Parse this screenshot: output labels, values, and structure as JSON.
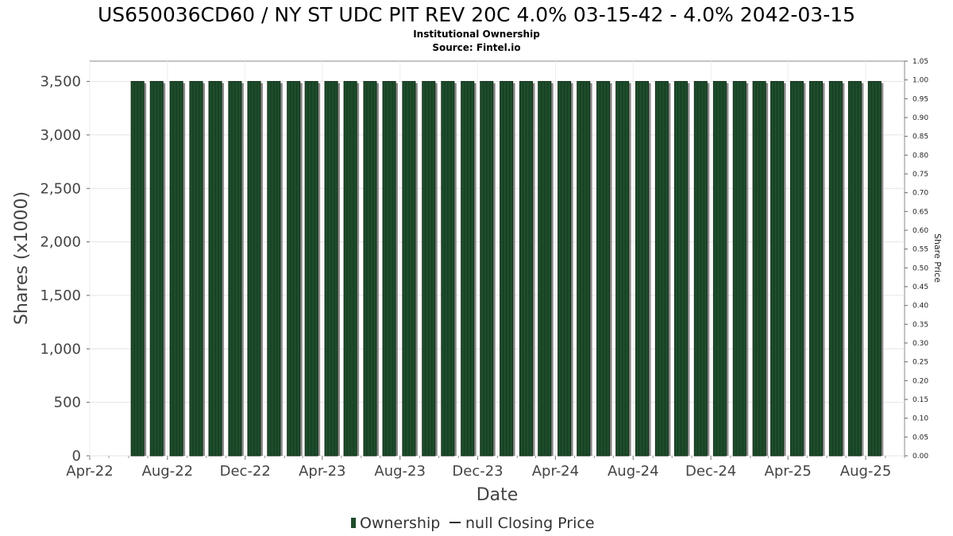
{
  "chart_data": {
    "type": "bar",
    "title": "US650036CD60 / NY ST UDC PIT REV 20C 4.0% 03-15-42 - 4.0% 2042-03-15",
    "subtitle_lines": [
      "Institutional Ownership",
      "Source: Fintel.io"
    ],
    "xlabel": "Date",
    "ylabel": "Shares (x1000)",
    "ylabel_right": "Share Price",
    "x_tick_labels": [
      "Apr-22",
      "Aug-22",
      "Dec-22",
      "Apr-23",
      "Aug-23",
      "Dec-23",
      "Apr-24",
      "Aug-24",
      "Dec-24",
      "Apr-25",
      "Aug-25"
    ],
    "y_tick_labels": [
      "0",
      "500",
      "1,000",
      "1,500",
      "2,000",
      "2,500",
      "3,000",
      "3,500"
    ],
    "y_ticks": [
      0,
      500,
      1000,
      1500,
      2000,
      2500,
      3000,
      3500
    ],
    "ylim": [
      0,
      3690
    ],
    "y_right_tick_labels": [
      "0.00",
      "0.05",
      "0.10",
      "0.15",
      "0.20",
      "0.25",
      "0.30",
      "0.35",
      "0.40",
      "0.45",
      "0.50",
      "0.55",
      "0.60",
      "0.65",
      "0.70",
      "0.75",
      "0.80",
      "0.85",
      "0.90",
      "0.95",
      "1.00",
      "1.05"
    ],
    "y_right_ticks": [
      0,
      0.05,
      0.1,
      0.15,
      0.2,
      0.25,
      0.3,
      0.35,
      0.4,
      0.45,
      0.5,
      0.55,
      0.6,
      0.65,
      0.7,
      0.75,
      0.8,
      0.85,
      0.9,
      0.95,
      1.0,
      1.05
    ],
    "ylim_right": [
      0,
      1.05
    ],
    "x_start": "2022-04-01",
    "x_end": "2025-10-01",
    "series": [
      {
        "name": "Ownership",
        "color": "#1e4d2b",
        "dates": [
          "2022-06-15",
          "2022-07-15",
          "2022-08-15",
          "2022-09-15",
          "2022-10-15",
          "2022-11-15",
          "2022-12-15",
          "2023-01-15",
          "2023-02-15",
          "2023-03-15",
          "2023-04-15",
          "2023-05-15",
          "2023-06-15",
          "2023-07-15",
          "2023-08-15",
          "2023-09-15",
          "2023-10-15",
          "2023-11-15",
          "2023-12-15",
          "2024-01-15",
          "2024-02-15",
          "2024-03-15",
          "2024-04-15",
          "2024-05-15",
          "2024-06-15",
          "2024-07-15",
          "2024-08-15",
          "2024-09-15",
          "2024-10-15",
          "2024-11-15",
          "2024-12-15",
          "2025-01-15",
          "2025-02-15",
          "2025-03-15",
          "2025-04-15",
          "2025-05-15",
          "2025-06-15",
          "2025-07-15",
          "2025-08-15"
        ],
        "values": [
          3500,
          3500,
          3500,
          3500,
          3500,
          3500,
          3500,
          3500,
          3500,
          3500,
          3500,
          3500,
          3500,
          3500,
          3500,
          3500,
          3500,
          3500,
          3500,
          3500,
          3500,
          3500,
          3500,
          3500,
          3500,
          3500,
          3500,
          3500,
          3500,
          3500,
          3500,
          3500,
          3500,
          3500,
          3500,
          3500,
          3500,
          3500,
          3500
        ]
      },
      {
        "name": "null Closing Price",
        "color": "#333333",
        "values": []
      }
    ],
    "grid": true,
    "legend_position": "bottom-center"
  }
}
